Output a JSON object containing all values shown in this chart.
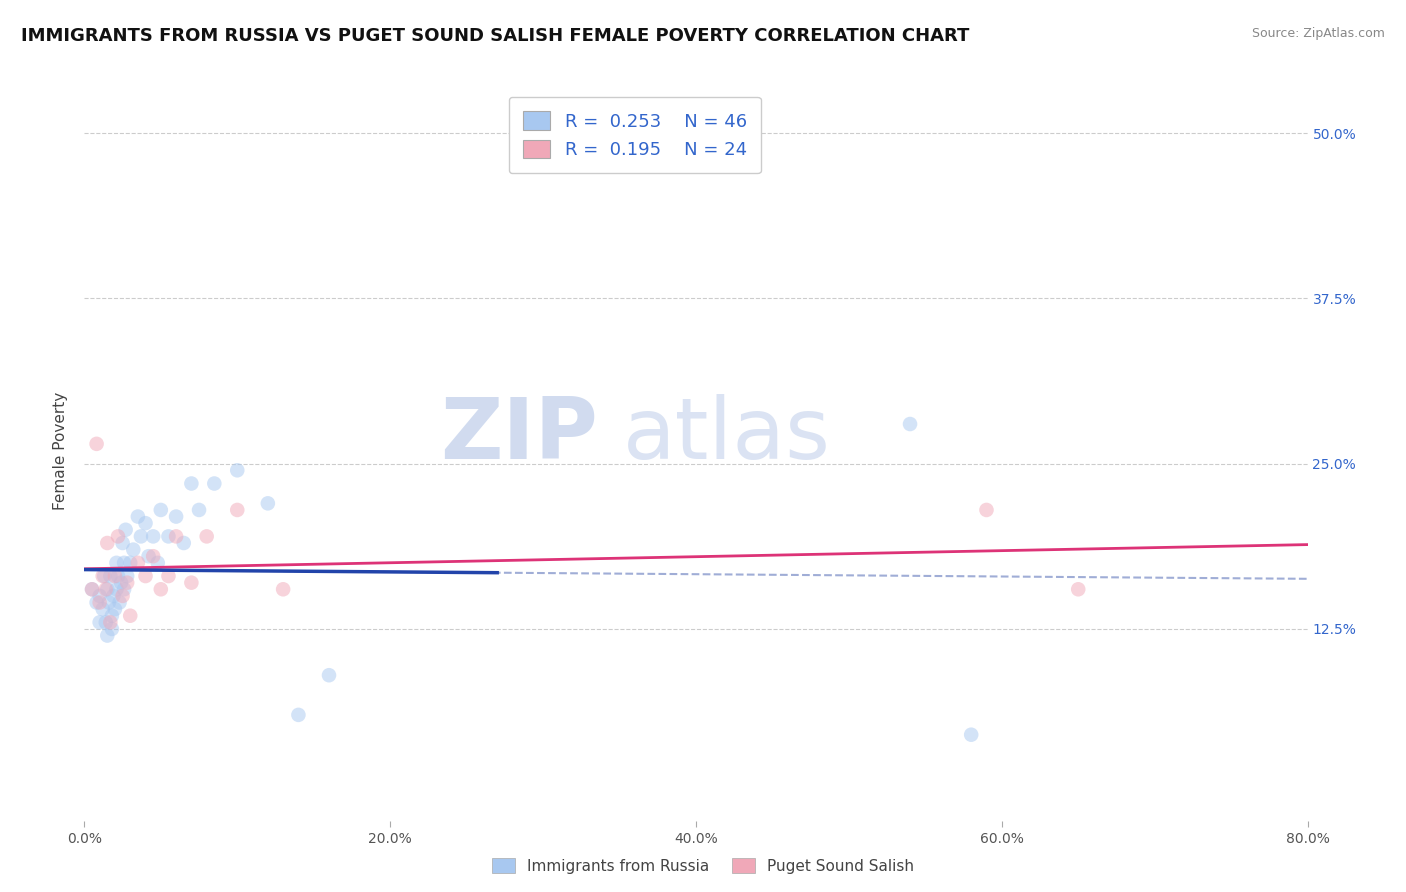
{
  "title": "IMMIGRANTS FROM RUSSIA VS PUGET SOUND SALISH FEMALE POVERTY CORRELATION CHART",
  "source": "Source: ZipAtlas.com",
  "ylabel": "Female Poverty",
  "xlim": [
    0.0,
    0.8
  ],
  "ylim": [
    -0.02,
    0.54
  ],
  "xtick_labels": [
    "0.0%",
    "20.0%",
    "40.0%",
    "60.0%",
    "80.0%"
  ],
  "xtick_values": [
    0.0,
    0.2,
    0.4,
    0.6,
    0.8
  ],
  "ytick_right_labels": [
    "12.5%",
    "25.0%",
    "37.5%",
    "50.0%"
  ],
  "ytick_right_values": [
    0.125,
    0.25,
    0.375,
    0.5
  ],
  "blue_color": "#a8c8f0",
  "pink_color": "#f0a8b8",
  "blue_line_color": "#2244aa",
  "blue_dashed_color": "#8899cc",
  "pink_line_color": "#dd3377",
  "legend_R1": "0.253",
  "legend_N1": "46",
  "legend_R2": "0.195",
  "legend_N2": "24",
  "watermark_zip": "ZIP",
  "watermark_atlas": "atlas",
  "blue_scatter_x": [
    0.005,
    0.008,
    0.01,
    0.01,
    0.012,
    0.013,
    0.014,
    0.015,
    0.015,
    0.016,
    0.017,
    0.018,
    0.018,
    0.019,
    0.02,
    0.021,
    0.021,
    0.022,
    0.023,
    0.024,
    0.025,
    0.026,
    0.026,
    0.027,
    0.028,
    0.03,
    0.032,
    0.035,
    0.037,
    0.04,
    0.042,
    0.045,
    0.048,
    0.05,
    0.055,
    0.06,
    0.065,
    0.07,
    0.075,
    0.085,
    0.1,
    0.12,
    0.14,
    0.16,
    0.54,
    0.58
  ],
  "blue_scatter_y": [
    0.155,
    0.145,
    0.13,
    0.15,
    0.14,
    0.165,
    0.13,
    0.155,
    0.12,
    0.145,
    0.165,
    0.135,
    0.125,
    0.15,
    0.14,
    0.175,
    0.155,
    0.165,
    0.145,
    0.16,
    0.19,
    0.155,
    0.175,
    0.2,
    0.165,
    0.175,
    0.185,
    0.21,
    0.195,
    0.205,
    0.18,
    0.195,
    0.175,
    0.215,
    0.195,
    0.21,
    0.19,
    0.235,
    0.215,
    0.235,
    0.245,
    0.22,
    0.06,
    0.09,
    0.28,
    0.045
  ],
  "pink_scatter_x": [
    0.005,
    0.008,
    0.01,
    0.012,
    0.014,
    0.015,
    0.017,
    0.02,
    0.022,
    0.025,
    0.028,
    0.03,
    0.035,
    0.04,
    0.045,
    0.05,
    0.055,
    0.06,
    0.07,
    0.08,
    0.1,
    0.13,
    0.59,
    0.65
  ],
  "pink_scatter_y": [
    0.155,
    0.265,
    0.145,
    0.165,
    0.155,
    0.19,
    0.13,
    0.165,
    0.195,
    0.15,
    0.16,
    0.135,
    0.175,
    0.165,
    0.18,
    0.155,
    0.165,
    0.195,
    0.16,
    0.195,
    0.215,
    0.155,
    0.215,
    0.155
  ],
  "grid_color": "#cccccc",
  "background_color": "#ffffff",
  "title_fontsize": 13,
  "axis_label_fontsize": 11,
  "tick_fontsize": 10,
  "scatter_size": 110,
  "scatter_alpha": 0.5,
  "blue_line_x_end": 0.27,
  "blue_line_start_y": 0.155,
  "blue_line_end_y": 0.215
}
